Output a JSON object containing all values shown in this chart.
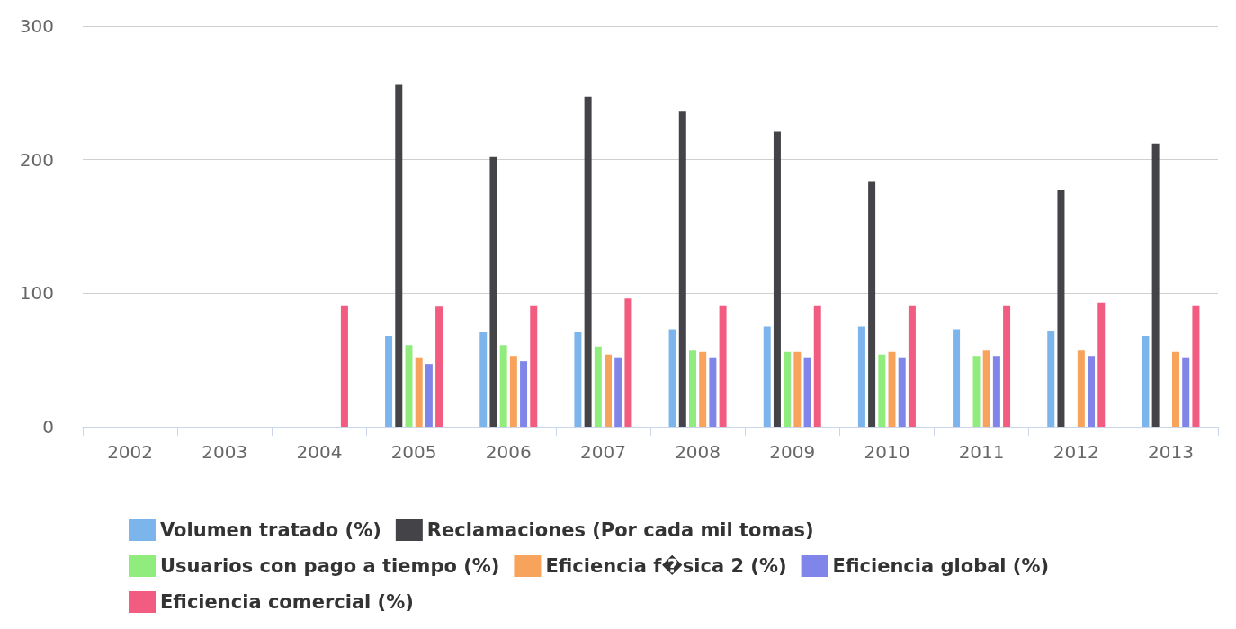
{
  "chart_data": {
    "type": "bar",
    "categories": [
      "2002",
      "2003",
      "2004",
      "2005",
      "2006",
      "2007",
      "2008",
      "2009",
      "2010",
      "2011",
      "2012",
      "2013"
    ],
    "series": [
      {
        "name": "Volumen tratado (%)",
        "color": "#7cb5ec",
        "values": [
          null,
          null,
          null,
          68,
          71,
          71,
          73,
          75,
          75,
          73,
          72,
          68
        ]
      },
      {
        "name": "Reclamaciones (Por cada mil tomas)",
        "color": "#434348",
        "values": [
          null,
          null,
          null,
          256,
          202,
          247,
          236,
          221,
          184,
          null,
          177,
          212
        ]
      },
      {
        "name": "Usuarios con pago a tiempo (%)",
        "color": "#90ed7d",
        "values": [
          null,
          null,
          null,
          61,
          61,
          60,
          57,
          56,
          54,
          53,
          null,
          null
        ]
      },
      {
        "name": "Eficiencia f�sica 2 (%)",
        "color": "#f7a35c",
        "values": [
          null,
          null,
          null,
          52,
          53,
          54,
          56,
          56,
          56,
          57,
          57,
          56
        ]
      },
      {
        "name": "Eficiencia global (%)",
        "color": "#8085e9",
        "values": [
          null,
          null,
          null,
          47,
          49,
          52,
          52,
          52,
          52,
          53,
          53,
          52
        ]
      },
      {
        "name": "Eficiencia comercial (%)",
        "color": "#f15c80",
        "values": [
          null,
          null,
          91,
          90,
          91,
          96,
          91,
          91,
          91,
          91,
          93,
          91
        ]
      }
    ],
    "ylim": [
      0,
      300
    ],
    "yticks": [
      0,
      100,
      200,
      300
    ],
    "grid": "y",
    "legend": "bottom"
  }
}
